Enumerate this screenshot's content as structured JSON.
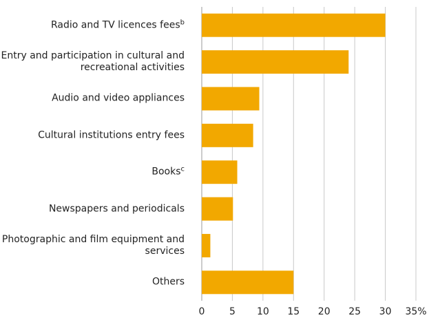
{
  "chart_data": {
    "type": "hbar",
    "categories": [
      "Radio and TV licences fees",
      "Entry and participation in cultural and recreational activities",
      "Audio and video appliances",
      "Cultural institutions entry fees",
      "Books",
      "Newspapers and periodicals",
      "Photographic and film equipment and services",
      "Others"
    ],
    "category_notes": [
      "b",
      null,
      null,
      null,
      "c",
      null,
      null,
      null
    ],
    "values": [
      30,
      24,
      9.4,
      8.4,
      5.8,
      5.1,
      1.4,
      15
    ],
    "color": "#f2a800",
    "xlim": [
      0,
      35
    ],
    "xticks": [
      0,
      5,
      10,
      15,
      20,
      25,
      30,
      {
        "value": 35,
        "label": "35%"
      }
    ],
    "grid": true
  }
}
